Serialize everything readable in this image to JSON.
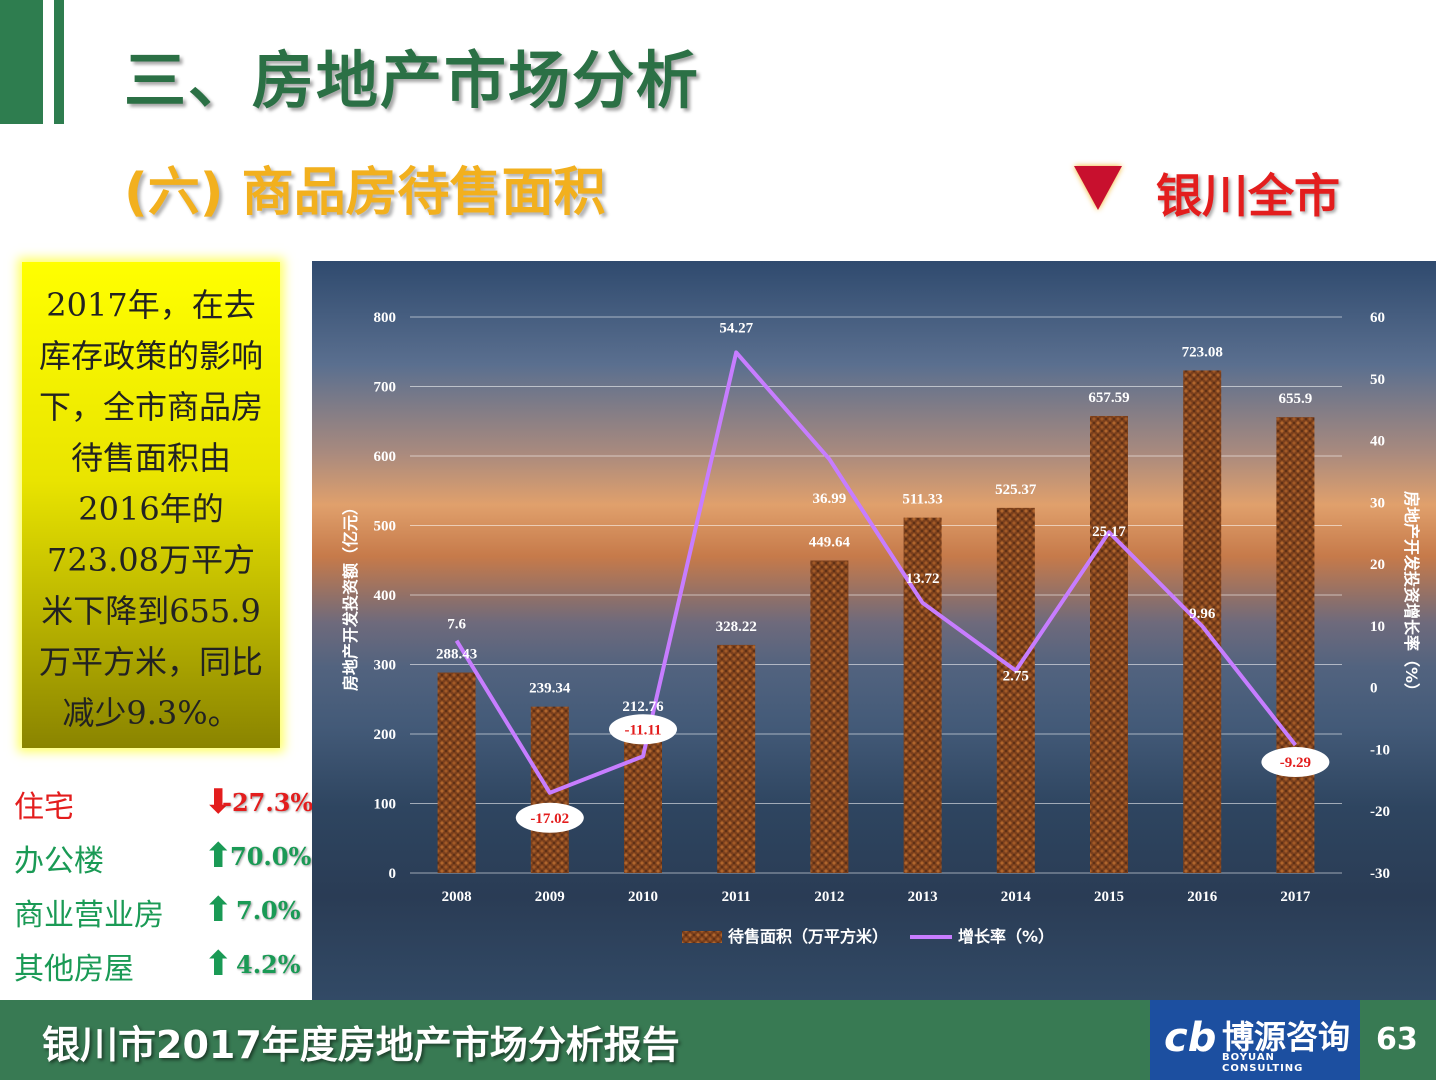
{
  "header": {
    "title": "三、房地产市场分析",
    "subtitle": "(六) 商品房待售面积",
    "region": "银川全市"
  },
  "note": "2017年，在去库存政策的影响下，全市商品房待售面积由2016年的723.08万平方米下降到655.9万平方米，同比减少9.3%。",
  "categories": [
    {
      "name": "住宅",
      "change": "-27.3%",
      "direction": "down",
      "color": "#e31d1d"
    },
    {
      "name": "办公楼",
      "change": "70.0%",
      "direction": "up",
      "color": "#1a9a55"
    },
    {
      "name": "商业营业房",
      "change": "7.0%",
      "direction": "up",
      "color": "#1a9a55"
    },
    {
      "name": "其他房屋",
      "change": "4.2%",
      "direction": "up",
      "color": "#1a9a55"
    }
  ],
  "chart_data": {
    "type": "bar+line",
    "categories": [
      "2008",
      "2009",
      "2010",
      "2011",
      "2012",
      "2013",
      "2014",
      "2015",
      "2016",
      "2017"
    ],
    "series": [
      {
        "name": "待售面积（万平方米）",
        "type": "bar",
        "axis": "left",
        "values": [
          288.43,
          239.34,
          212.76,
          328.22,
          449.64,
          511.33,
          525.37,
          657.59,
          723.08,
          655.9
        ],
        "labels": [
          "288.43",
          "239.34",
          "212.76",
          "328.22",
          "449.64",
          "511.33",
          "525.37",
          "657.59",
          "723.08",
          "655.9"
        ]
      },
      {
        "name": "增长率（%）",
        "type": "line",
        "axis": "right",
        "values": [
          7.6,
          -17.02,
          -11.11,
          54.27,
          36.99,
          13.72,
          2.75,
          25.17,
          9.96,
          -9.29
        ],
        "labels": [
          "7.6",
          "-17.02",
          "-11.11",
          "54.27",
          "36.99",
          "13.72",
          "2.75",
          "25.17",
          "9.96",
          "-9.29"
        ]
      }
    ],
    "ylabel": "房地产开发投资额（亿元）",
    "y2label": "房地产开发投资增长率（%）",
    "ylim": [
      0,
      800
    ],
    "yticks": [
      "0",
      "100",
      "200",
      "300",
      "400",
      "500",
      "600",
      "700",
      "800"
    ],
    "y2lim": [
      -30,
      60
    ],
    "y2ticks": [
      "-30",
      "-20",
      "-10",
      "0",
      "10",
      "20",
      "30",
      "40",
      "50",
      "60"
    ],
    "grid": true,
    "legend": "bottom",
    "highlighted_labels": [
      1,
      2,
      9
    ],
    "colors": {
      "bar": "#7a3f1c",
      "line": "#c77dff"
    }
  },
  "footer": {
    "title": "银川市2017年度房地产市场分析报告",
    "logo_cn": "博源咨询",
    "logo_en": "BOYUAN CONSULTING",
    "page": "63"
  },
  "icons": {
    "region_marker": "triangle-down-icon",
    "up": "arrow-up-icon",
    "down": "arrow-down-icon"
  }
}
